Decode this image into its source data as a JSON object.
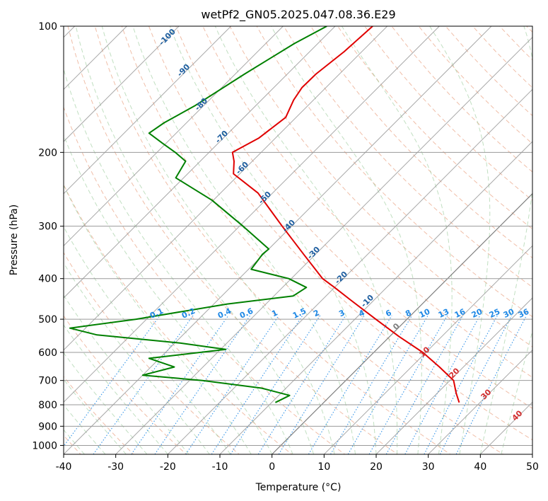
{
  "chart_data": {
    "type": "line",
    "title": "wetPf2_GN05.2025.047.08.36.E29",
    "xlabel": "Temperature (°C)",
    "ylabel": "Pressure (hPa)",
    "xlim": [
      -40,
      50
    ],
    "ylim": [
      1050,
      100
    ],
    "y_scale": "log",
    "skew": "skew-T",
    "grid": true,
    "x_ticks": [
      -40,
      -30,
      -20,
      -10,
      0,
      10,
      20,
      30,
      40,
      50
    ],
    "y_ticks": [
      100,
      200,
      300,
      400,
      500,
      600,
      700,
      800,
      900,
      1000
    ],
    "colors": {
      "temperature": "#e00000",
      "dewpoint": "#008000",
      "dry_adiabats": "#e89b7a",
      "moist_adiabats": "#8ec48e",
      "mixing_ratio": "#1e88e5",
      "isotherm": "#808080",
      "dry_adiabat_labels": "#d32f2f",
      "moist_adiabat_labels": "#1f5fa0",
      "mixing_ratio_labels": "#1e88e5"
    },
    "series": [
      {
        "role": "temperature",
        "points": [
          [
            100,
            -62.8
          ],
          [
            115,
            -63.4
          ],
          [
            130,
            -64.5
          ],
          [
            140,
            -64.6
          ],
          [
            150,
            -63.8
          ],
          [
            165,
            -62.0
          ],
          [
            185,
            -63.2
          ],
          [
            200,
            -65.5
          ],
          [
            210,
            -63.5
          ],
          [
            225,
            -61.2
          ],
          [
            250,
            -52.8
          ],
          [
            300,
            -41.8
          ],
          [
            350,
            -32.3
          ],
          [
            400,
            -24.0
          ],
          [
            420,
            -20.0
          ],
          [
            450,
            -14.5
          ],
          [
            500,
            -6.0
          ],
          [
            550,
            1.8
          ],
          [
            600,
            9.4
          ],
          [
            650,
            15.4
          ],
          [
            700,
            20.7
          ],
          [
            750,
            23.6
          ],
          [
            790,
            26.0
          ]
        ]
      },
      {
        "role": "dewpoint",
        "points": [
          [
            100,
            -71.6
          ],
          [
            110,
            -74.5
          ],
          [
            130,
            -78.2
          ],
          [
            155,
            -81.7
          ],
          [
            170,
            -84.3
          ],
          [
            180,
            -85.2
          ],
          [
            190,
            -80.8
          ],
          [
            200,
            -76.5
          ],
          [
            210,
            -72.8
          ],
          [
            230,
            -71.5
          ],
          [
            260,
            -60.3
          ],
          [
            300,
            -49.3
          ],
          [
            340,
            -40.0
          ],
          [
            350,
            -40.2
          ],
          [
            380,
            -39.5
          ],
          [
            400,
            -30.5
          ],
          [
            420,
            -25.4
          ],
          [
            440,
            -26.3
          ],
          [
            460,
            -37.4
          ],
          [
            500,
            -52.0
          ],
          [
            525,
            -63.0
          ],
          [
            545,
            -56.5
          ],
          [
            570,
            -39.0
          ],
          [
            590,
            -29.0
          ],
          [
            620,
            -42.0
          ],
          [
            650,
            -35.5
          ],
          [
            680,
            -40.0
          ],
          [
            700,
            -27.5
          ],
          [
            730,
            -14.7
          ],
          [
            760,
            -7.9
          ],
          [
            790,
            -9.3
          ]
        ]
      }
    ],
    "moist_adiabat_labels": [
      "-100",
      "-90",
      "-80",
      "-70",
      "-60",
      "-50",
      "-40",
      "-30",
      "-20",
      "-10",
      "0"
    ],
    "mixing_ratio_labels": [
      "0.1",
      "0.2",
      "0.4",
      "0.6",
      "1",
      "1.5",
      "2",
      "3",
      "4",
      "6",
      "8",
      "10",
      "13",
      "16",
      "20",
      "25",
      "30",
      "36"
    ],
    "dry_adiabat_labels": [
      "10",
      "20",
      "30",
      "40"
    ]
  }
}
